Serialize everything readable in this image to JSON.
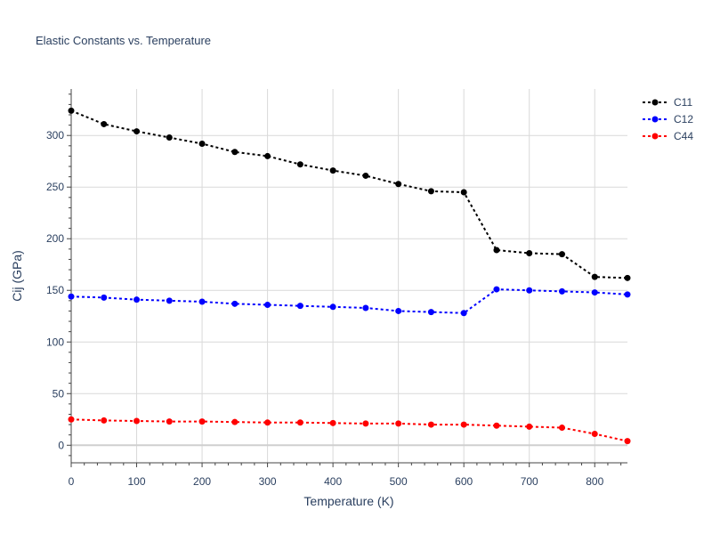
{
  "chart_data": {
    "type": "line",
    "title": "Elastic Constants vs. Temperature",
    "xlabel": "Temperature (K)",
    "ylabel": "Cij (GPa)",
    "xlim": [
      0,
      850
    ],
    "ylim": [
      -17,
      345
    ],
    "xticks": [
      0,
      100,
      200,
      300,
      400,
      500,
      600,
      700,
      800
    ],
    "yticks": [
      0,
      50,
      100,
      150,
      200,
      250,
      300
    ],
    "grid": true,
    "legend_position": "top-right",
    "x": [
      0,
      50,
      100,
      150,
      200,
      250,
      300,
      350,
      400,
      450,
      500,
      550,
      600,
      650,
      700,
      750,
      800,
      850
    ],
    "series": [
      {
        "name": "C11",
        "color": "#000000",
        "values": [
          324,
          311,
          304,
          298,
          292,
          284,
          280,
          272,
          266,
          261,
          253,
          246,
          245,
          189,
          186,
          185,
          163,
          162
        ]
      },
      {
        "name": "C12",
        "color": "#0000ff",
        "values": [
          144,
          143,
          141,
          140,
          139,
          137,
          136,
          135,
          134,
          133,
          130,
          129,
          128,
          151,
          150,
          149,
          148,
          146
        ]
      },
      {
        "name": "C44",
        "color": "#ff0000",
        "values": [
          25,
          24,
          23.5,
          23,
          23,
          22.5,
          22,
          22,
          21.5,
          21,
          21,
          20,
          20,
          19,
          18,
          17,
          11,
          4
        ]
      }
    ]
  }
}
